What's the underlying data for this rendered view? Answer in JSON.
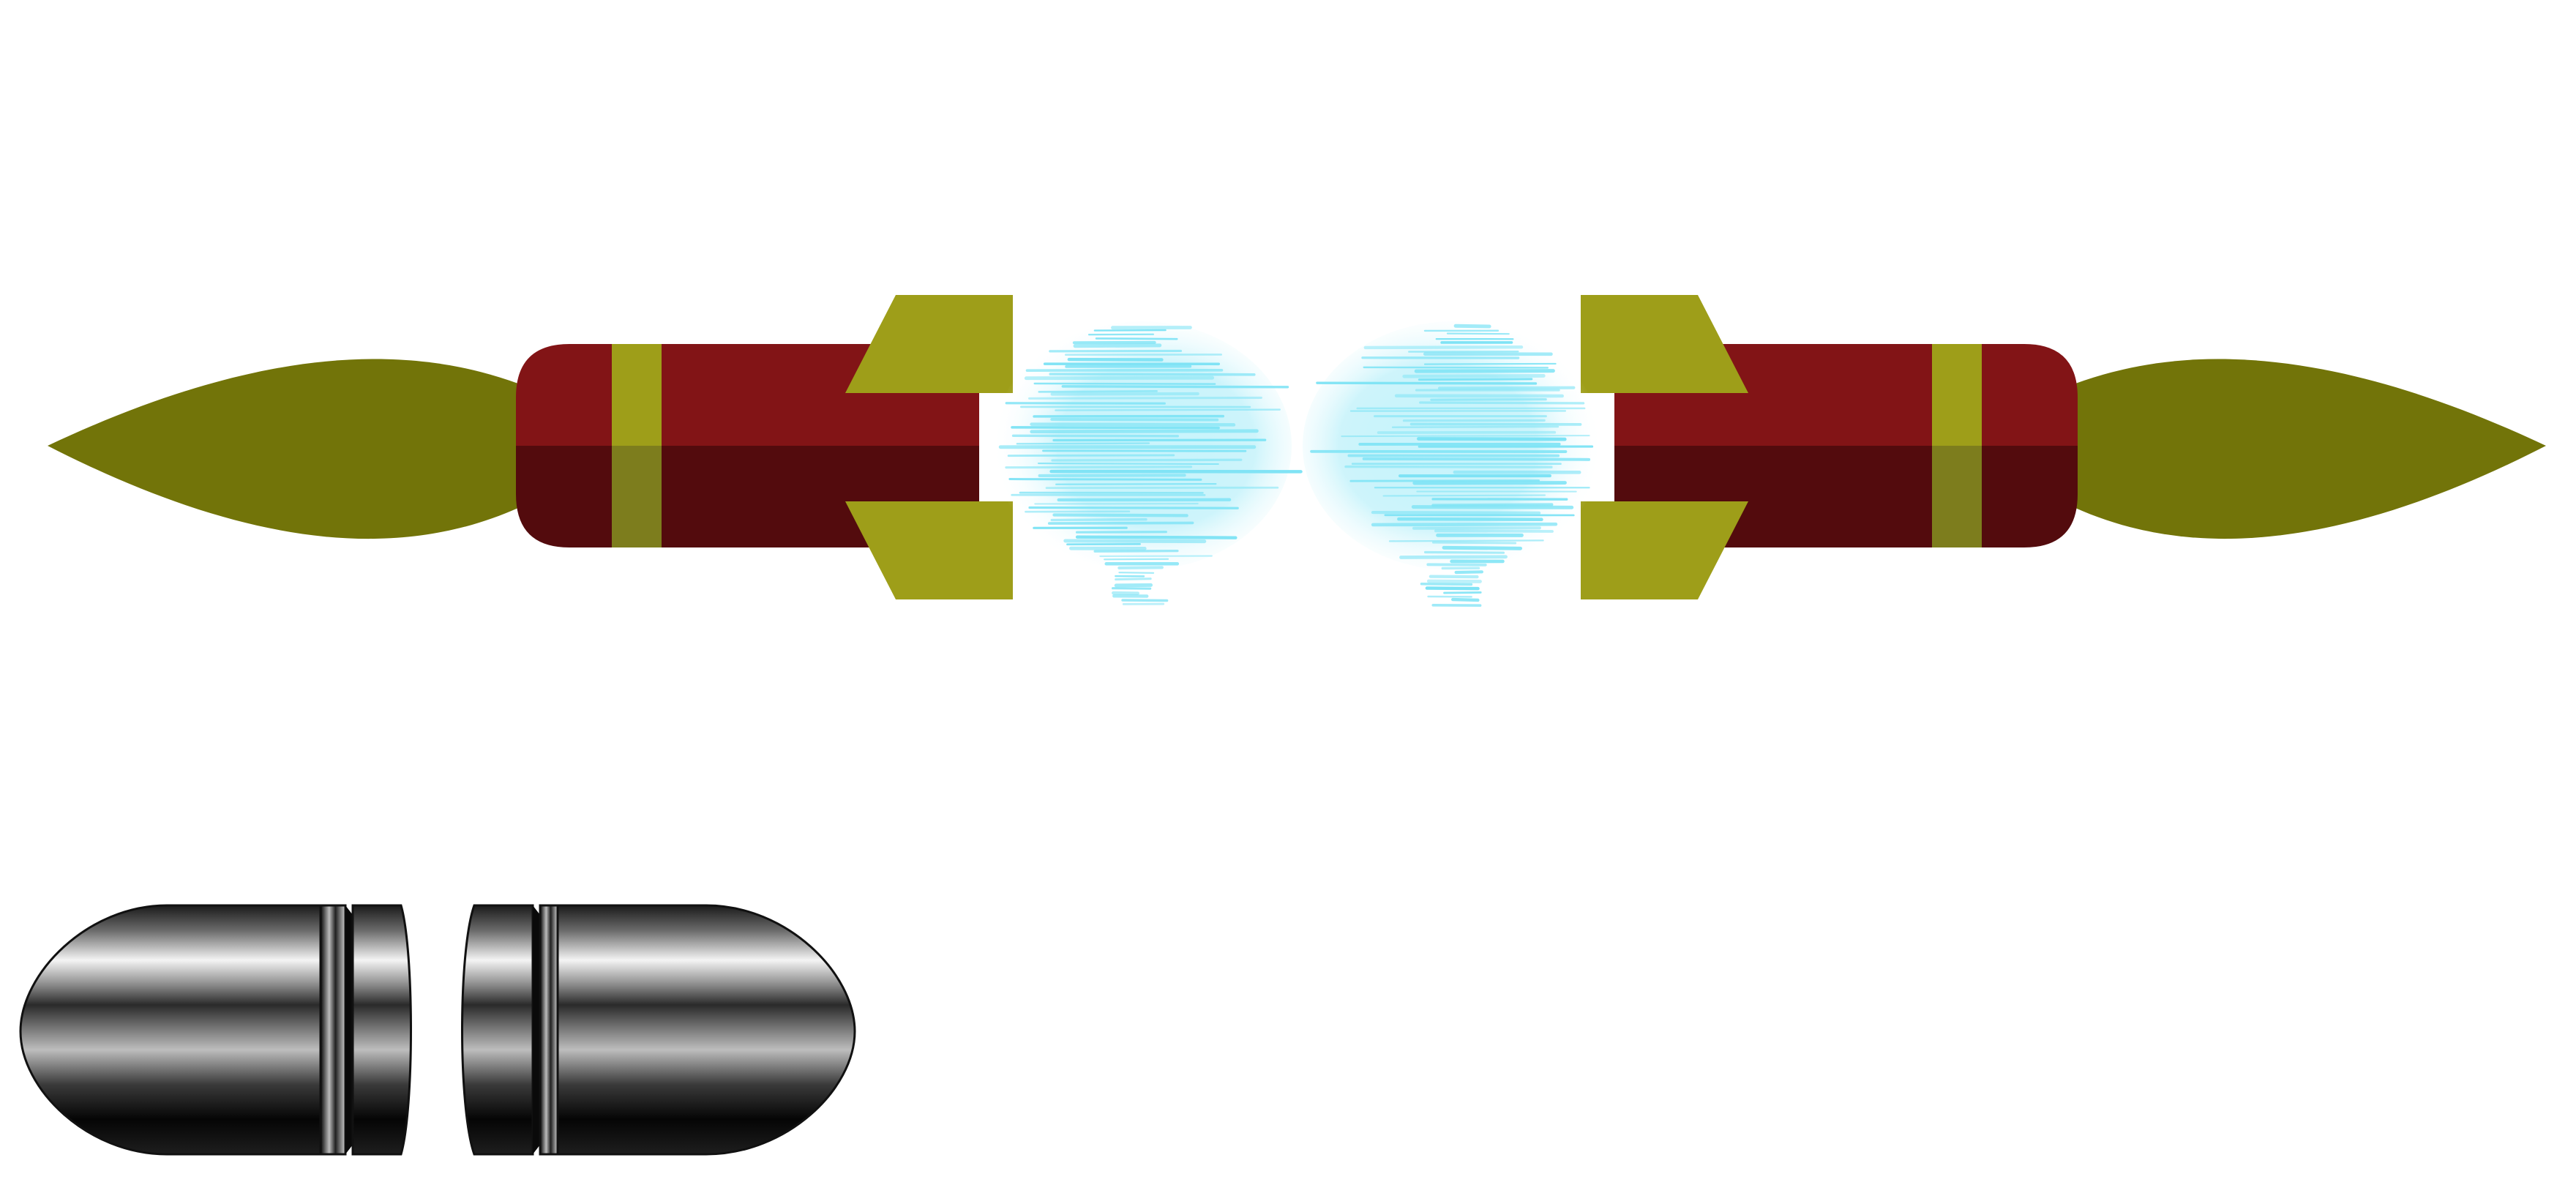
{
  "scene": {
    "background": "#ffffff",
    "missiles": [
      {
        "name": "left-missile",
        "orientation": "flame-left",
        "colors": {
          "body_top": "#821416",
          "body_bottom": "#530b0d",
          "band": "#9e9e19",
          "band_shadow": "#7d7d1d",
          "fins": "#9e9e19",
          "flame": "#727409"
        }
      },
      {
        "name": "right-missile",
        "orientation": "flame-right",
        "colors": {
          "body_top": "#821416",
          "body_bottom": "#530b0d",
          "band": "#9e9e19",
          "band_shadow": "#7d7d1d",
          "fins": "#9e9e19",
          "flame": "#727409"
        }
      }
    ],
    "energy_burst": {
      "color": "#7ee3f5",
      "glow": "#c8f4fc"
    },
    "capsule": {
      "metal_dark": "#050505",
      "metal_mid": "#5a5a5a",
      "metal_light": "#f4f4f4"
    }
  }
}
